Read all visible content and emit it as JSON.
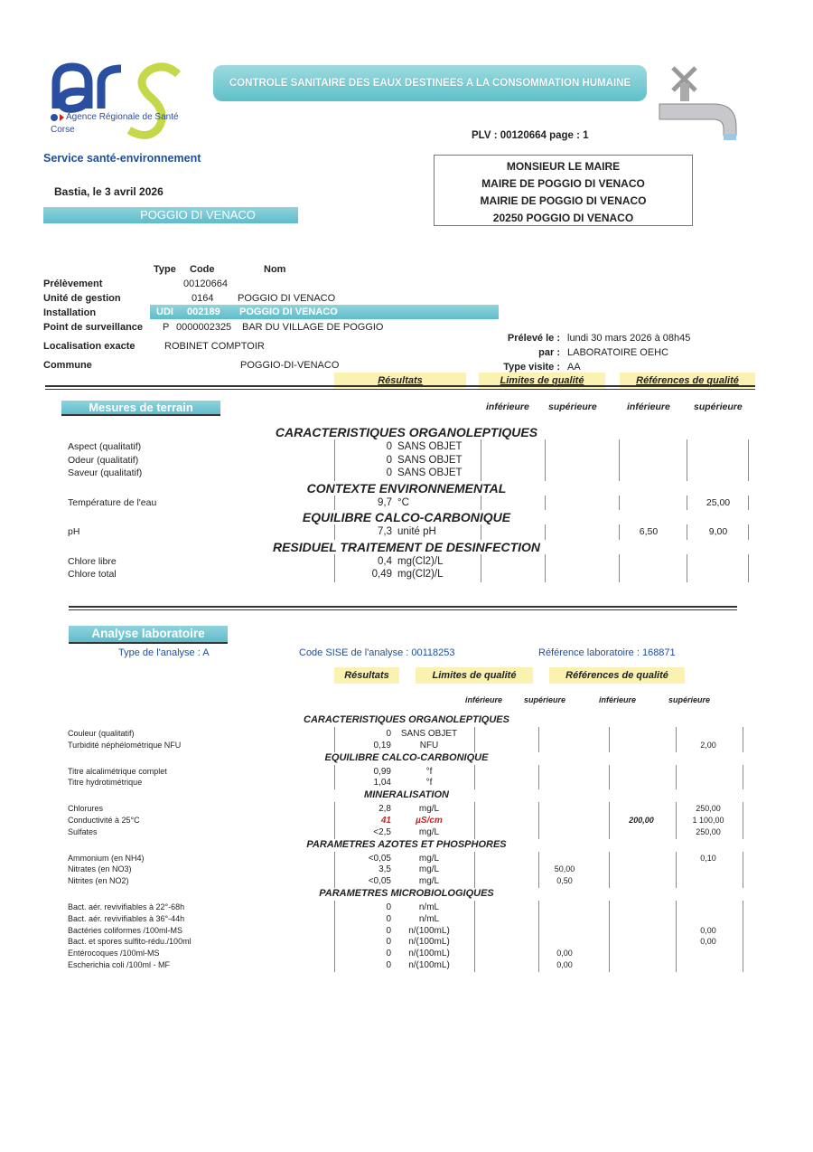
{
  "logo": {
    "text": "ars",
    "agency": "Agence Régionale de Santé",
    "region": "Corse",
    "colors": {
      "blue": "#2a4fa0",
      "green": "#c5d84a"
    }
  },
  "banner": "CONTROLE SANITAIRE DES EAUX DESTINEES A LA CONSOMMATION HUMAINE",
  "faucet_icon": "faucet-icon",
  "service": "Service santé-environnement",
  "plv": "PLV : 00120664   page : 1",
  "date_line": "Bastia, le 3 avril 2026",
  "commune_banner": "POGGIO DI VENACO",
  "address": [
    "MONSIEUR LE MAIRE",
    "MAIRE DE POGGIO DI VENACO",
    "MAIRIE DE POGGIO DI VENACO",
    "20250 POGGIO DI VENACO"
  ],
  "info": {
    "col_headers": {
      "type": "Type",
      "code": "Code",
      "nom": "Nom"
    },
    "prelevement": {
      "label": "Prélèvement",
      "code": "00120664"
    },
    "unite": {
      "label": "Unité de gestion",
      "code": "0164",
      "nom": "POGGIO DI VENACO"
    },
    "installation": {
      "label": "Installation",
      "type": "UDI",
      "code": "002189",
      "nom": "POGGIO DI VENACO"
    },
    "point": {
      "label": "Point de surveillance",
      "type": "P",
      "code": "0000002325",
      "nom": "BAR DU VILLAGE DE POGGIO"
    },
    "localisation": {
      "label": "Localisation exacte",
      "value": "ROBINET COMPTOIR"
    },
    "commune": {
      "label": "Commune",
      "value": "POGGIO-DI-VENACO"
    },
    "preleve_le": {
      "label": "Prélevé le :",
      "value": "lundi 30 mars 2026 à 08h45"
    },
    "par": {
      "label": "par :",
      "value": "LABORATOIRE OEHC"
    },
    "type_visite": {
      "label": "Type visite :",
      "value": "AA"
    }
  },
  "column_headers": {
    "resultats": "Résultats",
    "limites": "Limites de qualité",
    "references": "Références de qualité",
    "inf": "inférieure",
    "sup": "supérieure"
  },
  "terrain": {
    "title": "Mesures de terrain",
    "rows": [
      {
        "section": "CARACTERISTIQUES ORGANOLEPTIQUES"
      },
      {
        "label": "Aspect (qualitatif)",
        "value": "0",
        "unit": "SANS OBJET"
      },
      {
        "label": "Odeur (qualitatif)",
        "value": "0",
        "unit": "SANS OBJET"
      },
      {
        "label": "Saveur (qualitatif)",
        "value": "0",
        "unit": "SANS OBJET"
      },
      {
        "section": "CONTEXTE ENVIRONNEMENTAL"
      },
      {
        "label": "Température de l'eau",
        "value": "9,7",
        "unit": "°C",
        "ref_sup": "25,00"
      },
      {
        "section": "EQUILIBRE CALCO-CARBONIQUE"
      },
      {
        "label": "pH",
        "value": "7,3",
        "unit": "unité pH",
        "ref_inf": "6,50",
        "ref_sup": "9,00"
      },
      {
        "section": "RESIDUEL TRAITEMENT DE DESINFECTION"
      },
      {
        "label": "Chlore libre",
        "value": "0,4",
        "unit": "mg(Cl2)/L"
      },
      {
        "label": "Chlore total",
        "value": "0,49",
        "unit": "mg(Cl2)/L"
      }
    ]
  },
  "labo": {
    "title": "Analyse laboratoire",
    "type_analyse": "Type de l'analyse : A",
    "code_sise": "Code SISE de l'analyse : 00118253",
    "ref_labo": "Référence laboratoire : 168871",
    "rows": [
      {
        "section": "CARACTERISTIQUES ORGANOLEPTIQUES"
      },
      {
        "label": "Couleur (qualitatif)",
        "value": "0",
        "unit": "SANS OBJET"
      },
      {
        "label": "Turbidité néphélométrique NFU",
        "value": "0,19",
        "unit": "NFU",
        "ref_sup": "2,00"
      },
      {
        "section": "EQUILIBRE CALCO-CARBONIQUE"
      },
      {
        "label": "Titre alcalimétrique complet",
        "value": "0,99",
        "unit": "°f"
      },
      {
        "label": "Titre hydrotimétrique",
        "value": "1,04",
        "unit": "°f"
      },
      {
        "section": "MINERALISATION"
      },
      {
        "label": "Chlorures",
        "value": "2,8",
        "unit": "mg/L",
        "ref_sup": "250,00"
      },
      {
        "label": "Conductivité à 25°C",
        "value": "41",
        "unit": "µS/cm",
        "ref_inf": "200,00",
        "ref_sup": "1 100,00",
        "flag": true
      },
      {
        "label": "Sulfates",
        "value": "<2,5",
        "unit": "mg/L",
        "ref_sup": "250,00"
      },
      {
        "section": "PARAMETRES AZOTES ET PHOSPHORES"
      },
      {
        "label": "Ammonium (en NH4)",
        "value": "<0,05",
        "unit": "mg/L",
        "ref_sup": "0,10"
      },
      {
        "label": "Nitrates (en NO3)",
        "value": "3,5",
        "unit": "mg/L",
        "lim_sup": "50,00"
      },
      {
        "label": "Nitrites (en NO2)",
        "value": "<0,05",
        "unit": "mg/L",
        "lim_sup": "0,50"
      },
      {
        "section": "PARAMETRES MICROBIOLOGIQUES"
      },
      {
        "label": "Bact. aér. revivifiables à 22°-68h",
        "value": "0",
        "unit": "n/mL"
      },
      {
        "label": "Bact. aér. revivifiables à 36°-44h",
        "value": "0",
        "unit": "n/mL"
      },
      {
        "label": "Bactéries coliformes /100ml-MS",
        "value": "0",
        "unit": "n/(100mL)",
        "ref_sup": "0,00"
      },
      {
        "label": "Bact. et spores sulfito-rédu./100ml",
        "value": "0",
        "unit": "n/(100mL)",
        "ref_sup": "0,00"
      },
      {
        "label": "Entérocoques /100ml-MS",
        "value": "0",
        "unit": "n/(100mL)",
        "lim_sup": "0,00"
      },
      {
        "label": "Escherichia coli /100ml - MF",
        "value": "0",
        "unit": "n/(100mL)",
        "lim_sup": "0,00"
      }
    ]
  }
}
